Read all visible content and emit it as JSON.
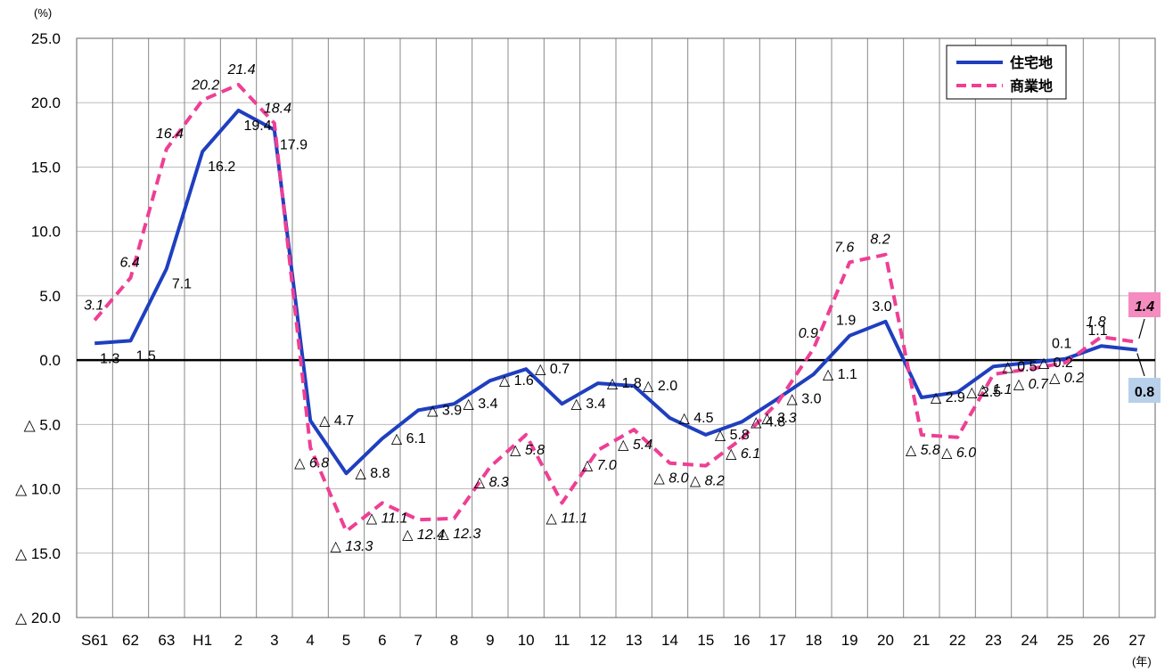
{
  "chart_data": {
    "type": "line",
    "y_unit": "(%)",
    "x_unit": "(年)",
    "categories": [
      "S61",
      "62",
      "63",
      "H1",
      "2",
      "3",
      "4",
      "5",
      "6",
      "7",
      "8",
      "9",
      "10",
      "11",
      "12",
      "13",
      "14",
      "15",
      "16",
      "17",
      "18",
      "19",
      "20",
      "21",
      "22",
      "23",
      "24",
      "25",
      "26",
      "27"
    ],
    "ylim": [
      -20,
      25
    ],
    "y_ticks": [
      25,
      20,
      15,
      10,
      5,
      0,
      -5,
      -10,
      -15,
      -20
    ],
    "y_tick_labels": [
      "25.0",
      "20.0",
      "15.0",
      "10.0",
      "5.0",
      "0.0",
      "△ 5.0",
      "△ 10.0",
      "△ 15.0",
      "△ 20.0"
    ],
    "grid": true,
    "legend": "top-right",
    "series": [
      {
        "name": "住宅地",
        "color": "#1f3fbf",
        "style": "solid",
        "values": [
          1.3,
          1.5,
          7.1,
          16.2,
          19.4,
          17.9,
          -4.7,
          -8.8,
          -6.1,
          -3.9,
          -3.4,
          -1.6,
          -0.7,
          -3.4,
          -1.8,
          -2.0,
          -4.5,
          -5.8,
          -4.8,
          -3.0,
          -1.1,
          1.9,
          3.0,
          -2.9,
          -2.5,
          -0.5,
          -0.2,
          0.1,
          1.1,
          0.8
        ],
        "labels": [
          "1.3",
          "1.5",
          "7.1",
          "16.2",
          "19.4",
          "17.9",
          "△ 4.7",
          "△ 8.8",
          "△ 6.1",
          "△ 3.9",
          "△ 3.4",
          "△ 1.6",
          "△ 0.7",
          "△ 3.4",
          "△ 1.8",
          "△ 2.0",
          "△ 4.5",
          "△ 5.8",
          "△ 4.8",
          "△ 3.0",
          "△ 1.1",
          "1.9",
          "3.0",
          "△ 2.9",
          "△ 2.5",
          "△ 0.5",
          "△ 0.2",
          "0.1",
          "1.1",
          "0.8"
        ]
      },
      {
        "name": "商業地",
        "color": "#ee3f95",
        "style": "dashed",
        "values": [
          3.1,
          6.4,
          16.4,
          20.2,
          21.4,
          18.4,
          -6.8,
          -13.3,
          -11.1,
          -12.4,
          -12.3,
          -8.3,
          -5.8,
          -11.1,
          -7.0,
          -5.4,
          -8.0,
          -8.2,
          -6.1,
          -3.3,
          0.9,
          7.6,
          8.2,
          -5.8,
          -6.0,
          -1.1,
          -0.7,
          -0.2,
          1.8,
          1.4
        ],
        "labels": [
          "3.1",
          "6.4",
          "16.4",
          "20.2",
          "21.4",
          "18.4",
          "△ 6.8",
          "△ 13.3",
          "△ 11.1",
          "△ 12.4",
          "△ 12.3",
          "△ 8.3",
          "△ 5.8",
          "△ 11.1",
          "△ 7.0",
          "△ 5.4",
          "△ 8.0",
          "△ 8.2",
          "△ 6.1",
          "△ 3.3",
          "0.9",
          "7.6",
          "8.2",
          "△ 5.8",
          "△ 6.0",
          "△ 1.1",
          "△ 0.7",
          "△ 0.2",
          "1.8",
          "1.4"
        ]
      }
    ],
    "highlight": {
      "residential_last": "0.8",
      "residential_color": "#b8d0ea",
      "commercial_last": "1.4",
      "commercial_color": "#f48cbf"
    }
  }
}
